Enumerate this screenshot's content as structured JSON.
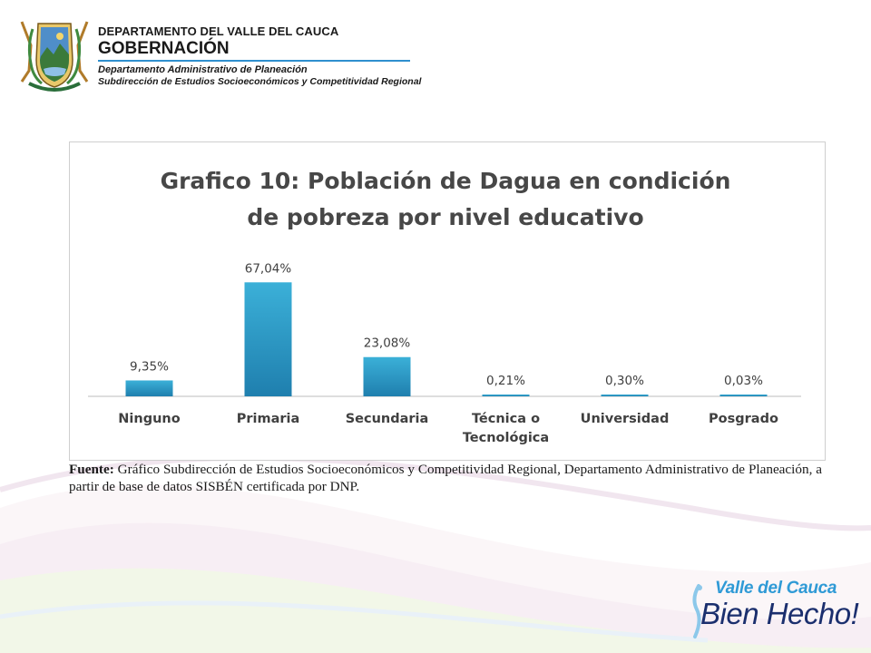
{
  "header": {
    "department": "DEPARTAMENTO DEL VALLE DEL CAUCA",
    "gobernacion": "GOBERNACIÓN",
    "office_line_1": "Departamento  Administrativo de Planeación",
    "office_line_2": "Subdirección de Estudios Socioeconómicos y Competitividad Regional"
  },
  "chart_data": {
    "type": "bar",
    "title_line_1": "Grafico 10: Población de Dagua en condición",
    "title_line_2": "de pobreza por nivel educativo",
    "categories": [
      [
        "Ninguno"
      ],
      [
        "Primaria"
      ],
      [
        "Secundaria"
      ],
      [
        "Técnica o",
        "Tecnológica"
      ],
      [
        "Universidad"
      ],
      [
        "Posgrado"
      ]
    ],
    "values": [
      9.35,
      67.04,
      23.08,
      0.21,
      0.3,
      0.03
    ],
    "value_labels": [
      "9,35%",
      "67,04%",
      "23,08%",
      "0,21%",
      "0,30%",
      "0,03%"
    ],
    "unit": "%",
    "xlabel": "",
    "ylabel": "",
    "ylim": [
      0,
      80
    ],
    "grid": false,
    "legend": "none",
    "bar_color": "#3bb0d8",
    "bar_color_dark": "#1f7fae"
  },
  "source": {
    "label": "Fuente:",
    "text": "Gráfico Subdirección de Estudios Socioeconómicos y Competitividad Regional, Departamento Administrativo de Planeación, a partir de base de datos SISBÉN certificada por DNP."
  },
  "brand": {
    "line_1": "Valle del Cauca",
    "line_2": "Bien Hecho!",
    "color_light": "#2f9ad6",
    "color_dark": "#1b2f6e"
  }
}
